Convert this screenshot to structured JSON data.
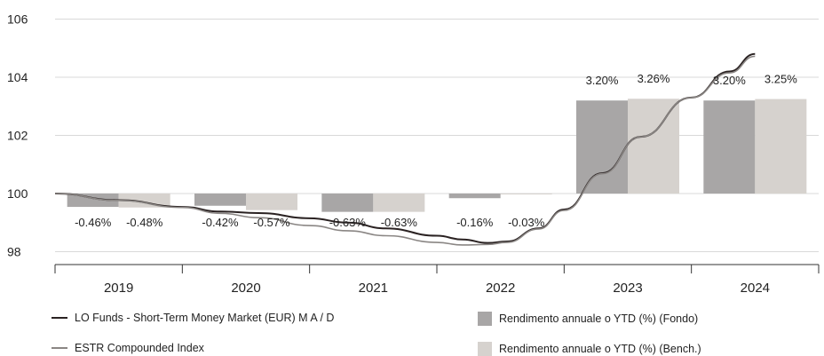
{
  "chart_data": {
    "type": "bar+line",
    "y_axis": {
      "ylim": [
        97.8,
        106
      ],
      "ticks": [
        98,
        100,
        102,
        104,
        106
      ],
      "grid": true
    },
    "categories": [
      "2019",
      "2020",
      "2021",
      "2022",
      "2023",
      "2024"
    ],
    "bar_series": [
      {
        "name": "Rendimento annuale o YTD (%) (Fondo)",
        "color": "#a8a6a6",
        "values": [
          -0.46,
          -0.42,
          -0.63,
          -0.16,
          3.2,
          3.2
        ],
        "labels": [
          "-0.46%",
          "-0.42%",
          "-0.63%",
          "-0.16%",
          "3.20%",
          "3.20%"
        ]
      },
      {
        "name": "Rendimento annuale o YTD (%) (Bench.)",
        "color": "#d6d2ce",
        "values": [
          -0.48,
          -0.57,
          -0.63,
          -0.03,
          3.26,
          3.25
        ],
        "labels": [
          "-0.48%",
          "-0.57%",
          "-0.63%",
          "-0.03%",
          "3.26%",
          "3.25%"
        ]
      }
    ],
    "line_series": [
      {
        "name": "LO Funds - Short-Term Money Market (EUR) M A / D",
        "color": "#2a2222",
        "points": [
          [
            0,
            100.0
          ],
          [
            0.5,
            99.77
          ],
          [
            1.0,
            99.54
          ],
          [
            1.3,
            99.38
          ],
          [
            1.6,
            99.33
          ],
          [
            2.0,
            99.15
          ],
          [
            2.3,
            99.0
          ],
          [
            2.6,
            98.8
          ],
          [
            3.0,
            98.55
          ],
          [
            3.2,
            98.42
          ],
          [
            3.4,
            98.3
          ],
          [
            3.55,
            98.35
          ],
          [
            3.8,
            98.8
          ],
          [
            4.0,
            99.45
          ],
          [
            4.3,
            100.7
          ],
          [
            4.6,
            101.95
          ],
          [
            5.0,
            103.3
          ],
          [
            5.3,
            104.2
          ],
          [
            5.5,
            104.8
          ]
        ]
      },
      {
        "name": "ESTR Compounded Index",
        "color": "#8a8684",
        "points": [
          [
            0,
            100.0
          ],
          [
            0.5,
            99.76
          ],
          [
            1.0,
            99.52
          ],
          [
            1.3,
            99.32
          ],
          [
            1.6,
            99.17
          ],
          [
            2.0,
            98.9
          ],
          [
            2.3,
            98.72
          ],
          [
            2.6,
            98.55
          ],
          [
            3.0,
            98.32
          ],
          [
            3.2,
            98.23
          ],
          [
            3.4,
            98.25
          ],
          [
            3.55,
            98.32
          ],
          [
            3.8,
            98.78
          ],
          [
            4.0,
            99.42
          ],
          [
            4.3,
            100.68
          ],
          [
            4.6,
            101.95
          ],
          [
            5.0,
            103.3
          ],
          [
            5.3,
            104.15
          ],
          [
            5.5,
            104.72
          ]
        ]
      }
    ]
  }
}
